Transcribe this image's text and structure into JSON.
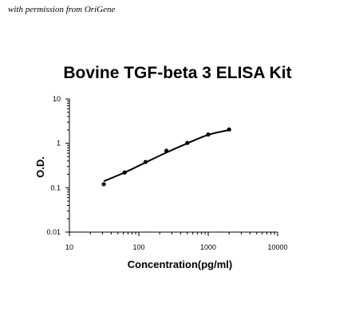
{
  "credit": "with permission from OriGene",
  "chart_data": {
    "type": "scatter",
    "title": "Bovine TGF-beta 3 ELISA Kit",
    "xlabel": "Concentration(pg/ml)",
    "ylabel": "O.D.",
    "xscale": "log",
    "yscale": "log",
    "xlim": [
      10,
      10000
    ],
    "ylim": [
      0.01,
      10
    ],
    "x_ticks": [
      "10",
      "100",
      "1000",
      "10000"
    ],
    "y_ticks": [
      "0.01",
      "0.1",
      "1",
      "10"
    ],
    "grid": false,
    "legend": "none",
    "series": [
      {
        "points": [
          {
            "x": 31.25,
            "y": 0.12
          },
          {
            "x": 62.5,
            "y": 0.22
          },
          {
            "x": 125,
            "y": 0.38
          },
          {
            "x": 250,
            "y": 0.68
          },
          {
            "x": 500,
            "y": 1.02
          },
          {
            "x": 1000,
            "y": 1.58
          },
          {
            "x": 2000,
            "y": 2.05
          }
        ],
        "fit_line": [
          {
            "x": 31.25,
            "y": 0.14
          },
          {
            "x": 62.5,
            "y": 0.22
          },
          {
            "x": 125,
            "y": 0.37
          },
          {
            "x": 250,
            "y": 0.62
          },
          {
            "x": 500,
            "y": 1.0
          },
          {
            "x": 1000,
            "y": 1.55
          },
          {
            "x": 2000,
            "y": 2.0
          }
        ]
      }
    ],
    "colors": {
      "marker": "#000000",
      "line": "#000000",
      "axis": "#000000"
    }
  }
}
